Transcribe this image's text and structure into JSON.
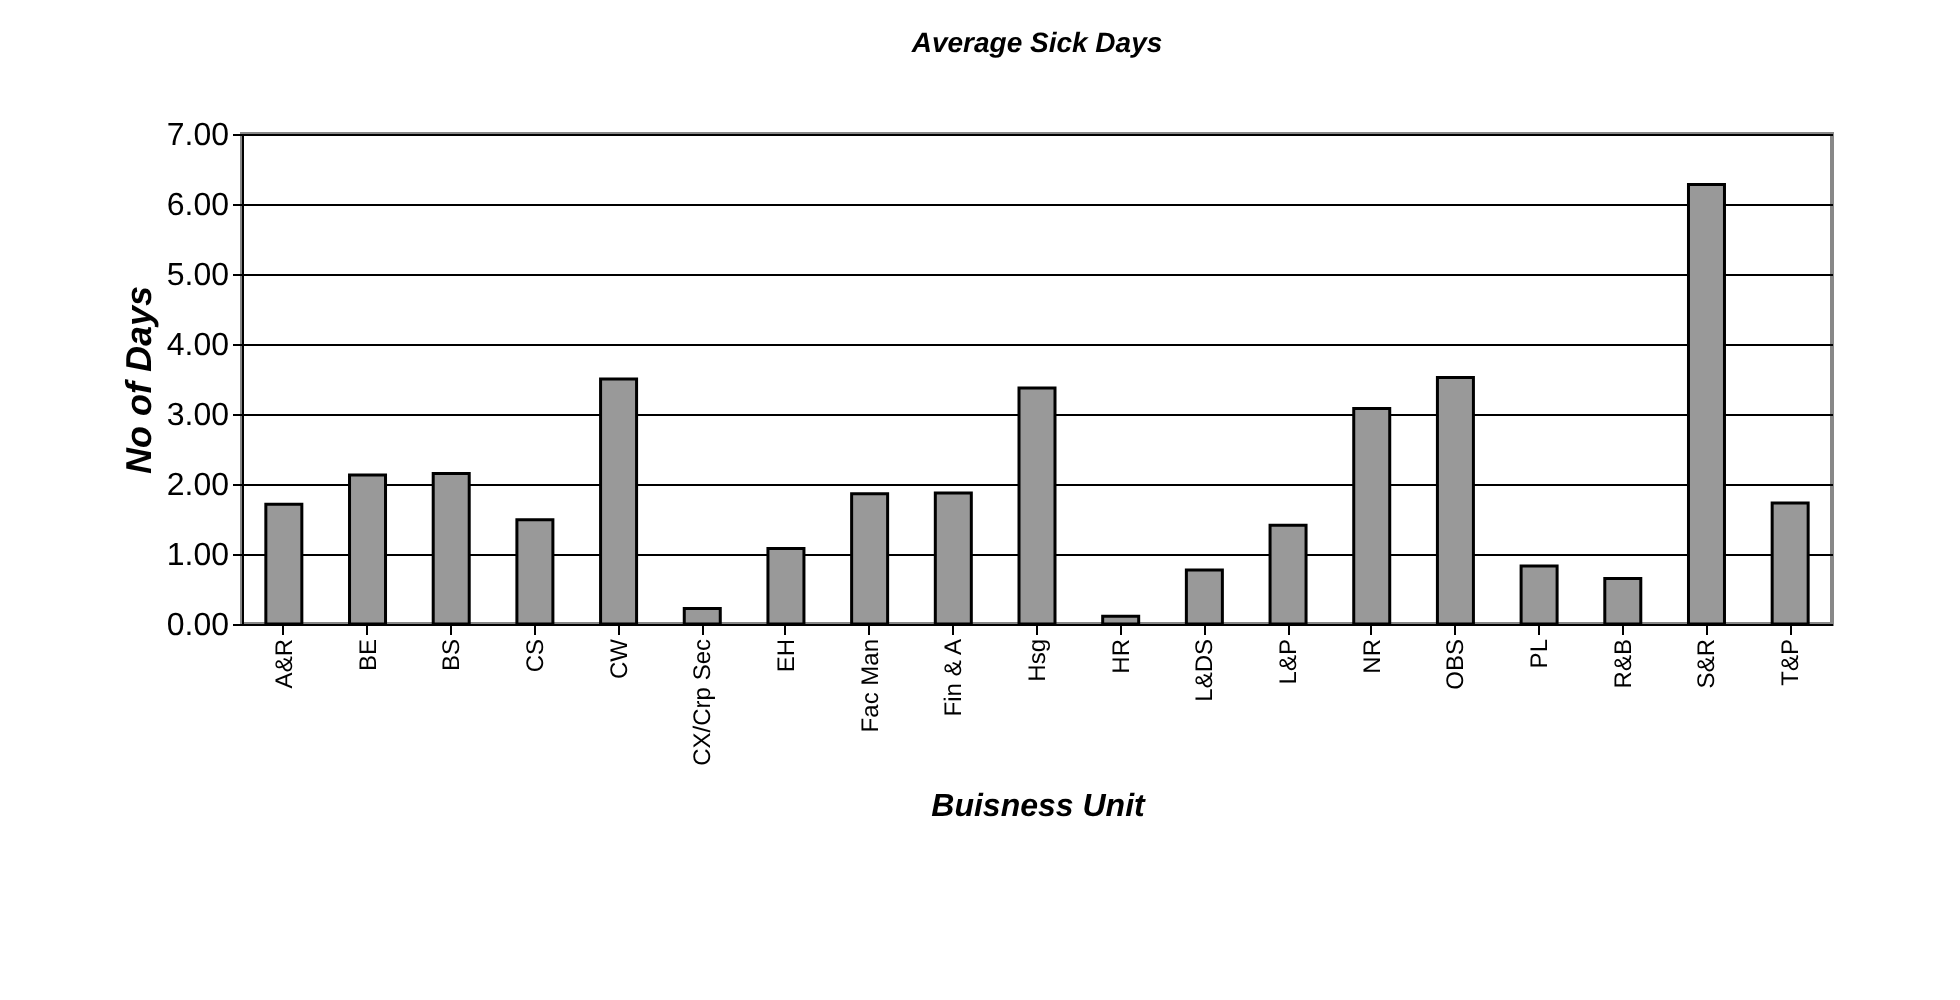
{
  "chart_data": {
    "type": "bar",
    "title": "Average Sick Days",
    "xlabel": "Buisness Unit",
    "ylabel": "No of Days",
    "categories": [
      "A&R",
      "BE",
      "BS",
      "CS",
      "CW",
      "CX/Crp Sec",
      "EH",
      "Fac Man",
      "Fin & A",
      "Hsg",
      "HR",
      "L&DS",
      "L&P",
      "NR",
      "OBS",
      "PL",
      "R&B",
      "S&R",
      "T&P"
    ],
    "values": [
      1.71,
      2.13,
      2.15,
      1.49,
      3.5,
      0.22,
      1.08,
      1.86,
      1.87,
      3.37,
      0.11,
      0.77,
      1.41,
      3.08,
      3.52,
      0.83,
      0.65,
      6.28,
      1.73
    ],
    "color": "#999999",
    "ylim": [
      0,
      7
    ],
    "yticks": [
      {
        "value": 0,
        "label": "0.00"
      },
      {
        "value": 1,
        "label": "1.00"
      },
      {
        "value": 2,
        "label": "2.00"
      },
      {
        "value": 3,
        "label": "3.00"
      },
      {
        "value": 4,
        "label": "4.00"
      },
      {
        "value": 5,
        "label": "5.00"
      },
      {
        "value": 6,
        "label": "6.00"
      },
      {
        "value": 7,
        "label": "7.00"
      }
    ],
    "grid": "y"
  }
}
